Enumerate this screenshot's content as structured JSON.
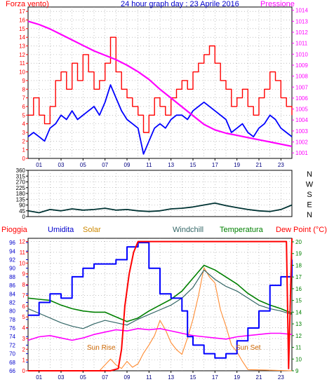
{
  "chart_data": [
    {
      "type": "line",
      "title": "24 hour graph day : 23 Aprile 2016",
      "xticks": [
        "01",
        "03",
        "05",
        "07",
        "09",
        "11",
        "13",
        "15",
        "17",
        "19",
        "21",
        "23"
      ],
      "xlim": [
        0,
        24
      ],
      "left_axis": {
        "label": "Forza vento)",
        "ticks": [
          0,
          1,
          2,
          3,
          4,
          5,
          6,
          7,
          8,
          9,
          10,
          11,
          12,
          13,
          14,
          15,
          16,
          17
        ],
        "ylim": [
          0,
          17.5
        ]
      },
      "right_axis": {
        "label": "Pressione",
        "ticks": [
          1001,
          1002,
          1003,
          1004,
          1005,
          1006,
          1007,
          1008,
          1009,
          1010,
          1011,
          1012,
          1013,
          1014
        ],
        "ylim": [
          1000.5,
          1014.3
        ]
      },
      "series": [
        {
          "id": "gust",
          "color": "#ff0000",
          "axis": "left",
          "x": [
            0,
            0.5,
            1,
            1.5,
            2,
            2.5,
            3,
            3.5,
            4,
            4.5,
            5,
            5.5,
            6,
            6.5,
            7,
            7.5,
            8,
            8.5,
            9,
            9.5,
            10,
            10.5,
            11,
            11.5,
            12,
            12.5,
            13,
            13.5,
            14,
            14.5,
            15,
            15.5,
            16,
            16.5,
            17,
            17.5,
            18,
            18.5,
            19,
            19.5,
            20,
            20.5,
            21,
            21.5,
            22,
            22.5,
            23,
            23.5,
            24
          ],
          "y": [
            5,
            7,
            5,
            4,
            6,
            9,
            10,
            8,
            11,
            9,
            12,
            10,
            8,
            9,
            11,
            14,
            10,
            8,
            7,
            6,
            5,
            3,
            5,
            7,
            6,
            5,
            7,
            8,
            9,
            8,
            10,
            11,
            12,
            13,
            11,
            9,
            8,
            6,
            7,
            8,
            6,
            5,
            7,
            8,
            10,
            9,
            7,
            6,
            5
          ]
        },
        {
          "id": "wind",
          "color": "#0000ff",
          "axis": "left",
          "x": [
            0,
            0.5,
            1,
            1.5,
            2,
            2.5,
            3,
            3.5,
            4,
            4.5,
            5,
            5.5,
            6,
            6.5,
            7,
            7.5,
            8,
            8.5,
            9,
            9.5,
            10,
            10.5,
            11,
            11.5,
            12,
            12.5,
            13,
            13.5,
            14,
            14.5,
            15,
            15.5,
            16,
            16.5,
            17,
            17.5,
            18,
            18.5,
            19,
            19.5,
            20,
            20.5,
            21,
            21.5,
            22,
            22.5,
            23,
            23.5,
            24
          ],
          "y": [
            2.5,
            3,
            2.5,
            2,
            3.5,
            4,
            5,
            4.5,
            5.5,
            4.5,
            5,
            5.5,
            6,
            5,
            6.5,
            8.5,
            7,
            5.5,
            4.5,
            4,
            3.5,
            0.5,
            2,
            3.5,
            4,
            3.5,
            4.5,
            5,
            5,
            4.5,
            5.5,
            6,
            6.5,
            6,
            5.5,
            5,
            4.5,
            3,
            3.5,
            4,
            3,
            2.5,
            3.5,
            4,
            5,
            4.5,
            3.5,
            3,
            2.5
          ]
        },
        {
          "id": "pressure",
          "color": "#ff00ff",
          "axis": "right",
          "x": [
            0,
            1,
            2,
            3,
            4,
            5,
            6,
            7,
            8,
            9,
            10,
            11,
            12,
            13,
            14,
            15,
            16,
            17,
            18,
            19,
            20,
            21,
            22,
            23,
            24
          ],
          "y": [
            1013,
            1012.7,
            1012.3,
            1011.8,
            1011.3,
            1010.8,
            1010.3,
            1009.9,
            1009.5,
            1009,
            1008.4,
            1007.7,
            1006.8,
            1006,
            1005.2,
            1004.4,
            1003.6,
            1003.1,
            1002.8,
            1002.6,
            1002.4,
            1002.2,
            1002,
            1001.8,
            1001.6
          ]
        }
      ]
    },
    {
      "type": "line",
      "xlim": [
        0,
        24
      ],
      "yticks": [
        0,
        45,
        90,
        135,
        180,
        225,
        270,
        315,
        360
      ],
      "ylim": [
        0,
        360
      ],
      "compass": [
        "N",
        "W",
        "S",
        "E",
        "N"
      ],
      "series": [
        {
          "id": "direction",
          "color": "#003333",
          "x": [
            0,
            1,
            2,
            3,
            4,
            5,
            6,
            7,
            8,
            9,
            10,
            11,
            12,
            13,
            14,
            15,
            16,
            17,
            18,
            19,
            20,
            21,
            22,
            23,
            24
          ],
          "y": [
            45,
            30,
            55,
            45,
            60,
            50,
            55,
            65,
            50,
            55,
            45,
            40,
            45,
            60,
            65,
            75,
            90,
            105,
            85,
            70,
            55,
            45,
            40,
            55,
            90
          ]
        }
      ]
    },
    {
      "type": "line",
      "xticks": [
        "01",
        "03",
        "05",
        "07",
        "09",
        "11",
        "13",
        "15",
        "17",
        "19",
        "21",
        "23"
      ],
      "xlim": [
        0,
        24
      ],
      "labels": {
        "pioggia": "Pioggia",
        "umidita": "Umidita",
        "solar": "Solar",
        "windchill": "Windchill",
        "temperatura": "Temperatura",
        "dewpoint": "Dew Point (°C)",
        "sunrise": "Sun Rise",
        "sunset": "Sun Set"
      },
      "axis_humidity": {
        "ticks": [
          66,
          68,
          70,
          72,
          74,
          76,
          78,
          80,
          82,
          84,
          86,
          88,
          90,
          92,
          94,
          96
        ],
        "ylim": [
          66,
          97
        ]
      },
      "axis_rain": {
        "ticks": [
          0,
          1,
          2,
          3,
          4,
          5,
          6,
          7,
          8,
          9,
          10,
          11,
          12
        ],
        "ylim": [
          0,
          12.3
        ]
      },
      "axis_temp": {
        "ticks": [
          9,
          10,
          11,
          12,
          13,
          14,
          15,
          16,
          17,
          18,
          19,
          20
        ],
        "ylim": [
          9,
          20.3
        ]
      },
      "series": [
        {
          "id": "rain",
          "color": "#ff0000",
          "axis": "rain",
          "x": [
            0,
            7.5,
            8.2,
            8.5,
            8.8,
            9.2,
            9.6,
            10,
            11,
            20,
            23.5,
            23.7,
            24
          ],
          "y": [
            0,
            0,
            0.2,
            2,
            6,
            9,
            11,
            12,
            12,
            12,
            12,
            0.2,
            12.3
          ]
        },
        {
          "id": "humidity",
          "color": "#0000ff",
          "axis": "humidity",
          "x": [
            0,
            1,
            2,
            3,
            4,
            5,
            6,
            7,
            8,
            9,
            10,
            10.5,
            11,
            12,
            13,
            14,
            14.5,
            15,
            16,
            17,
            18,
            19,
            20,
            21,
            22,
            23,
            24
          ],
          "y": [
            79,
            82,
            84,
            83,
            88,
            90,
            91,
            91,
            92,
            95,
            96,
            96,
            90,
            84,
            83,
            80,
            74,
            72,
            70,
            69,
            70,
            73,
            76,
            80,
            86,
            88,
            92
          ]
        },
        {
          "id": "windchill",
          "color": "#336666",
          "axis": "temp",
          "x": [
            0,
            1,
            2,
            3,
            4,
            5,
            6,
            7,
            8,
            9,
            10,
            11,
            12,
            13,
            14,
            15,
            16,
            17,
            18,
            19,
            20,
            21,
            22,
            23,
            24
          ],
          "y": [
            14.3,
            13.9,
            13.5,
            13.1,
            12.8,
            12.6,
            13,
            13.3,
            13.1,
            12.9,
            13.4,
            13.8,
            14.2,
            14.6,
            15.2,
            16.1,
            17.6,
            16.8,
            16.2,
            15.8,
            15.2,
            14.6,
            14.3,
            14.1,
            13.8
          ]
        },
        {
          "id": "temperature",
          "color": "#008000",
          "axis": "temp",
          "x": [
            0,
            1,
            2,
            3,
            4,
            5,
            6,
            7,
            8,
            9,
            10,
            11,
            12,
            13,
            14,
            15,
            16,
            17,
            18,
            19,
            20,
            21,
            22,
            23,
            24
          ],
          "y": [
            15.2,
            15.1,
            15,
            14.6,
            14.3,
            14.1,
            14,
            14,
            13.6,
            13.2,
            13.5,
            14.1,
            14.6,
            15.1,
            15.8,
            16.9,
            18,
            17.6,
            17,
            16.4,
            15.6,
            15,
            14.6,
            14.3,
            13.9
          ]
        },
        {
          "id": "solar",
          "color": "#ff8c33",
          "axis": "temp",
          "x": [
            0,
            6.5,
            6.8,
            7.5,
            8,
            8.5,
            9,
            9.5,
            10,
            10.5,
            11,
            11.5,
            12,
            12.5,
            13,
            13.5,
            14,
            14.5,
            15,
            15.5,
            16,
            16.5,
            17,
            17.5,
            18,
            18.5,
            19,
            19.5,
            20,
            24
          ],
          "y": [
            9,
            9,
            9.3,
            10,
            9.5,
            9.2,
            9.8,
            9.3,
            9.6,
            10.5,
            11.2,
            12,
            13.3,
            12.5,
            11.4,
            10.8,
            10.4,
            11.8,
            13.4,
            15.4,
            17.8,
            17,
            16.5,
            14.2,
            12.8,
            11.2,
            10.6,
            9.8,
            9.1,
            9
          ]
        },
        {
          "id": "dewpoint",
          "color": "#ff00ff",
          "axis": "temp",
          "x": [
            0,
            1,
            2,
            3,
            4,
            5,
            6,
            7,
            8,
            9,
            10,
            11,
            12,
            13,
            14,
            15,
            16,
            17,
            18,
            19,
            20,
            21,
            22,
            23,
            24
          ],
          "y": [
            11.6,
            11.9,
            12,
            11.8,
            11.6,
            11.8,
            12.1,
            12.3,
            12.5,
            12.4,
            12.6,
            12.5,
            12.6,
            12.4,
            12.2,
            12,
            11.9,
            11.8,
            11.7,
            11.9,
            12,
            12.1,
            12.2,
            12.2,
            12.1
          ]
        }
      ]
    }
  ]
}
